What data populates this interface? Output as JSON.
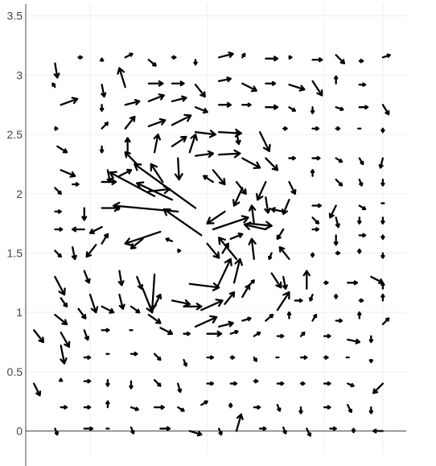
{
  "chart_data": {
    "type": "quiver",
    "title": "",
    "xlabel": "",
    "ylabel": "",
    "xlim": [
      -0.05,
      3.2
    ],
    "ylim": [
      -0.2,
      3.6
    ],
    "x_ticks_labeled": false,
    "y_ticks": [
      0,
      0.5,
      1,
      1.5,
      2,
      2.5,
      3,
      3.5
    ],
    "y_tick_labels": [
      "0",
      "0.5",
      "1",
      "1.5",
      "2",
      "2.5",
      "3",
      "3.5"
    ],
    "x_grid": [
      0.5,
      1.5,
      2.5,
      3.0
    ],
    "grid": true,
    "legend": "none",
    "arrow_color": "#000000",
    "grid_color": "#eeeeee",
    "axis_color": "#444444",
    "vectors": [
      [
        0.2,
        3.1,
        0.02,
        -0.12
      ],
      [
        0.4,
        3.15,
        0.03,
        0.0
      ],
      [
        0.6,
        3.12,
        0.0,
        0.02
      ],
      [
        0.8,
        3.15,
        0.06,
        0.03
      ],
      [
        1.0,
        3.13,
        0.06,
        -0.05
      ],
      [
        1.2,
        3.15,
        0.03,
        0.0
      ],
      [
        1.4,
        3.13,
        0.0,
        -0.04
      ],
      [
        1.6,
        3.15,
        0.12,
        0.03
      ],
      [
        1.8,
        3.15,
        0.02,
        0.03
      ],
      [
        2.0,
        3.14,
        0.1,
        0.0
      ],
      [
        2.2,
        3.15,
        0.02,
        0.0
      ],
      [
        2.4,
        3.13,
        0.08,
        0.0
      ],
      [
        2.6,
        3.17,
        0.07,
        -0.07
      ],
      [
        2.8,
        3.12,
        0.03,
        0.0
      ],
      [
        3.0,
        3.15,
        0.06,
        0.02
      ],
      [
        0.2,
        2.9,
        -0.02,
        0.03
      ],
      [
        0.6,
        2.92,
        0.02,
        -0.1
      ],
      [
        0.8,
        2.9,
        -0.05,
        0.16
      ],
      [
        1.0,
        2.93,
        0.12,
        0.0
      ],
      [
        1.2,
        2.93,
        0.1,
        0.0
      ],
      [
        1.4,
        2.92,
        0.08,
        -0.1
      ],
      [
        1.6,
        2.95,
        0.1,
        0.02
      ],
      [
        1.8,
        2.93,
        0.12,
        -0.06
      ],
      [
        2.0,
        2.93,
        0.08,
        0.0
      ],
      [
        2.2,
        2.92,
        0.13,
        -0.04
      ],
      [
        2.4,
        2.95,
        0.08,
        -0.12
      ],
      [
        2.6,
        2.93,
        0.0,
        0.06
      ],
      [
        2.8,
        2.92,
        0.05,
        0.0
      ],
      [
        0.25,
        2.75,
        0.14,
        0.05
      ],
      [
        0.6,
        2.75,
        0.0,
        -0.05
      ],
      [
        0.8,
        2.75,
        0.12,
        0.03
      ],
      [
        1.0,
        2.78,
        0.13,
        0.05
      ],
      [
        1.2,
        2.78,
        0.12,
        0.03
      ],
      [
        1.4,
        2.73,
        0.1,
        -0.04
      ],
      [
        1.6,
        2.75,
        0.1,
        0.0
      ],
      [
        1.8,
        2.75,
        0.07,
        0.0
      ],
      [
        2.0,
        2.73,
        0.1,
        0.0
      ],
      [
        2.2,
        2.73,
        0.05,
        -0.03
      ],
      [
        2.4,
        2.73,
        0.0,
        -0.05
      ],
      [
        2.6,
        2.73,
        0.06,
        -0.02
      ],
      [
        2.8,
        2.73,
        0.07,
        0.0
      ],
      [
        3.0,
        2.75,
        0.05,
        -0.08
      ],
      [
        0.2,
        2.55,
        0.02,
        0.0
      ],
      [
        0.6,
        2.55,
        0.05,
        0.05
      ],
      [
        0.8,
        2.55,
        0.08,
        0.1
      ],
      [
        1.0,
        2.57,
        0.14,
        0.05
      ],
      [
        1.2,
        2.58,
        0.16,
        0.08
      ],
      [
        1.4,
        2.52,
        0.17,
        -0.02
      ],
      [
        1.6,
        2.52,
        0.19,
        -0.01
      ],
      [
        1.75,
        2.52,
        0.02,
        -0.1
      ],
      [
        1.95,
        2.52,
        0.08,
        -0.16
      ],
      [
        2.15,
        2.55,
        0.03,
        0.0
      ],
      [
        2.4,
        2.55,
        0.05,
        0.0
      ],
      [
        2.6,
        2.55,
        0.03,
        0.0
      ],
      [
        2.8,
        2.55,
        0.0,
        0.0
      ],
      [
        3.0,
        2.55,
        0.0,
        -0.03
      ],
      [
        0.22,
        2.4,
        0.08,
        -0.05
      ],
      [
        0.6,
        2.4,
        0.0,
        -0.05
      ],
      [
        0.82,
        2.35,
        0.0,
        0.12
      ],
      [
        1.05,
        2.35,
        0.03,
        0.15
      ],
      [
        1.2,
        2.4,
        0.12,
        0.08
      ],
      [
        1.4,
        2.32,
        0.15,
        0.02
      ],
      [
        1.6,
        2.33,
        0.18,
        0.01
      ],
      [
        1.8,
        2.3,
        0.15,
        -0.08
      ],
      [
        2.0,
        2.3,
        0.1,
        -0.1
      ],
      [
        2.2,
        2.3,
        0.05,
        0.0
      ],
      [
        2.4,
        2.3,
        0.06,
        0.0
      ],
      [
        2.6,
        2.3,
        0.05,
        -0.03
      ],
      [
        2.8,
        2.3,
        0.03,
        -0.05
      ],
      [
        3.0,
        2.3,
        -0.02,
        -0.08
      ],
      [
        0.25,
        2.2,
        0.12,
        -0.05
      ],
      [
        0.65,
        2.2,
        0.02,
        -0.1
      ],
      [
        0.9,
        2.25,
        -0.1,
        0.1
      ],
      [
        1.12,
        2.1,
        -0.1,
        0.15
      ],
      [
        1.25,
        2.3,
        0.01,
        -0.18
      ],
      [
        1.35,
        2.35,
        0.05,
        0.15
      ],
      [
        1.55,
        2.2,
        0.1,
        -0.12
      ],
      [
        1.75,
        2.1,
        0.08,
        -0.1
      ],
      [
        2.0,
        2.1,
        -0.07,
        -0.15
      ],
      [
        2.2,
        2.1,
        0.05,
        -0.1
      ],
      [
        2.4,
        2.15,
        0.0,
        0.05
      ],
      [
        2.6,
        2.12,
        0.05,
        -0.05
      ],
      [
        2.8,
        2.12,
        0.02,
        -0.05
      ],
      [
        3.0,
        2.12,
        0.0,
        -0.05
      ],
      [
        0.2,
        2.05,
        0.05,
        -0.05
      ],
      [
        0.35,
        2.08,
        0.05,
        0.0
      ],
      [
        0.6,
        2.1,
        0.12,
        0.0
      ],
      [
        0.75,
        2.15,
        0.1,
        0.05
      ],
      [
        1.4,
        1.88,
        -0.52,
        0.37
      ],
      [
        1.0,
        2.02,
        0.18,
        0.02
      ],
      [
        1.2,
        1.95,
        -0.3,
        0.14
      ],
      [
        1.55,
        2.1,
        -0.08,
        0.05
      ],
      [
        1.8,
        2.05,
        -0.07,
        -0.15
      ],
      [
        2.0,
        1.97,
        0.02,
        -0.13
      ],
      [
        2.2,
        1.95,
        -0.05,
        -0.12
      ],
      [
        2.4,
        1.9,
        0.07,
        0.0
      ],
      [
        2.6,
        1.9,
        -0.05,
        -0.1
      ],
      [
        2.8,
        1.9,
        0.05,
        -0.03
      ],
      [
        3.0,
        1.92,
        0.0,
        0.0
      ],
      [
        0.2,
        1.85,
        0.05,
        0.0
      ],
      [
        0.45,
        1.88,
        0.0,
        -0.1
      ],
      [
        0.6,
        1.88,
        0.15,
        0.0
      ],
      [
        1.05,
        1.98,
        -0.38,
        0.2
      ],
      [
        1.25,
        1.85,
        -0.55,
        0.05
      ],
      [
        1.45,
        1.65,
        -0.32,
        0.22
      ],
      [
        1.65,
        1.85,
        -0.15,
        -0.1
      ],
      [
        1.9,
        1.75,
        -0.02,
        0.15
      ],
      [
        2.15,
        1.85,
        -0.1,
        0.02
      ],
      [
        2.4,
        1.8,
        0.05,
        -0.05
      ],
      [
        2.6,
        1.8,
        0.02,
        -0.08
      ],
      [
        2.8,
        1.8,
        0.0,
        -0.05
      ],
      [
        3.0,
        1.8,
        0.0,
        -0.05
      ],
      [
        0.2,
        1.7,
        0.06,
        0.0
      ],
      [
        0.45,
        1.7,
        -0.1,
        0.0
      ],
      [
        0.6,
        1.72,
        -0.1,
        -0.05
      ],
      [
        1.1,
        1.68,
        -0.3,
        -0.1
      ],
      [
        1.2,
        1.6,
        -0.05,
        0.02
      ],
      [
        1.55,
        1.7,
        0.3,
        0.1
      ],
      [
        1.7,
        1.62,
        0.1,
        0.04
      ],
      [
        1.85,
        1.75,
        0.2,
        -0.02
      ],
      [
        2.0,
        1.7,
        -0.18,
        0.04
      ],
      [
        2.15,
        1.7,
        -0.05,
        -0.08
      ],
      [
        2.4,
        1.7,
        0.05,
        0.0
      ],
      [
        2.6,
        1.65,
        0.0,
        -0.08
      ],
      [
        2.8,
        1.65,
        0.05,
        0.0
      ],
      [
        3.0,
        1.65,
        0.0,
        -0.03
      ],
      [
        0.2,
        1.52,
        0.05,
        -0.05
      ],
      [
        0.35,
        1.55,
        0.02,
        -0.1
      ],
      [
        0.55,
        1.57,
        -0.08,
        -0.1
      ],
      [
        0.6,
        1.58,
        0.05,
        0.08
      ],
      [
        0.95,
        1.62,
        -0.1,
        -0.08
      ],
      [
        1.25,
        1.52,
        0.02,
        0.0
      ],
      [
        1.5,
        1.58,
        0.1,
        -0.12
      ],
      [
        1.63,
        1.5,
        0.05,
        0.08
      ],
      [
        1.75,
        1.45,
        -0.15,
        0.18
      ],
      [
        1.9,
        1.45,
        -0.02,
        0.17
      ],
      [
        2.05,
        1.5,
        -0.02,
        -0.05
      ],
      [
        2.2,
        1.45,
        -0.08,
        0.1
      ],
      [
        2.4,
        1.5,
        0.0,
        -0.03
      ],
      [
        2.6,
        1.5,
        0.03,
        0.0
      ],
      [
        2.8,
        1.5,
        0.0,
        0.03
      ],
      [
        3.0,
        1.5,
        0.0,
        -0.04
      ],
      [
        0.2,
        1.3,
        0.08,
        -0.15
      ],
      [
        0.45,
        1.35,
        0.04,
        -0.1
      ],
      [
        0.75,
        1.35,
        0.02,
        -0.12
      ],
      [
        0.9,
        1.3,
        0.04,
        -0.1
      ],
      [
        1.05,
        1.32,
        -0.02,
        -0.3
      ],
      [
        1.35,
        1.24,
        0.25,
        -0.03
      ],
      [
        1.58,
        1.2,
        0.12,
        0.25
      ],
      [
        1.73,
        1.25,
        0.05,
        0.2
      ],
      [
        1.85,
        1.22,
        0.05,
        0.05
      ],
      [
        2.05,
        1.33,
        0.08,
        -0.12
      ],
      [
        2.15,
        1.3,
        0.02,
        -0.1
      ],
      [
        2.35,
        1.2,
        0.0,
        0.15
      ],
      [
        2.5,
        1.25,
        0.03,
        0.0
      ],
      [
        2.7,
        1.25,
        0.08,
        0.0
      ],
      [
        2.9,
        1.3,
        0.1,
        -0.05
      ],
      [
        3.0,
        1.2,
        0.0,
        0.05
      ],
      [
        0.25,
        1.12,
        0.05,
        -0.07
      ],
      [
        0.5,
        1.15,
        0.05,
        -0.15
      ],
      [
        0.75,
        1.15,
        0.03,
        -0.12
      ],
      [
        0.95,
        1.2,
        0.08,
        -0.2
      ],
      [
        1.05,
        1.05,
        0.05,
        0.1
      ],
      [
        1.2,
        1.1,
        0.15,
        -0.03
      ],
      [
        1.45,
        1.02,
        0.18,
        0.08
      ],
      [
        1.65,
        1.07,
        0.08,
        0.1
      ],
      [
        1.8,
        1.13,
        0.06,
        0.1
      ],
      [
        2.1,
        1.02,
        0.1,
        0.15
      ],
      [
        2.25,
        1.1,
        0.06,
        0.0
      ],
      [
        2.4,
        1.15,
        -0.02,
        -0.05
      ],
      [
        2.6,
        1.15,
        0.0,
        -0.03
      ],
      [
        2.8,
        1.1,
        0.03,
        0.0
      ],
      [
        3.0,
        1.1,
        0.0,
        0.05
      ],
      [
        0.2,
        0.98,
        0.1,
        -0.08
      ],
      [
        0.4,
        1.03,
        0.06,
        -0.08
      ],
      [
        0.6,
        1.05,
        0.1,
        -0.05
      ],
      [
        0.85,
        1.05,
        0.07,
        -0.05
      ],
      [
        1.0,
        0.98,
        0.1,
        -0.07
      ],
      [
        1.3,
        1.05,
        0.15,
        0.0
      ],
      [
        1.4,
        0.88,
        0.18,
        0.08
      ],
      [
        1.6,
        0.88,
        0.12,
        0.03
      ],
      [
        1.8,
        0.93,
        0.07,
        0.02
      ],
      [
        2.0,
        0.93,
        0.06,
        0.05
      ],
      [
        2.2,
        0.95,
        0.0,
        0.05
      ],
      [
        2.4,
        0.93,
        0.03,
        0.05
      ],
      [
        2.6,
        0.93,
        0.05,
        0.0
      ],
      [
        2.8,
        0.95,
        0.0,
        0.05
      ],
      [
        3.0,
        0.9,
        0.05,
        0.05
      ],
      [
        0.02,
        0.85,
        0.08,
        -0.1
      ],
      [
        0.25,
        0.83,
        0.07,
        -0.12
      ],
      [
        0.45,
        0.85,
        0.03,
        -0.08
      ],
      [
        0.6,
        0.85,
        0.06,
        0.0
      ],
      [
        0.85,
        0.85,
        0.0,
        0.0
      ],
      [
        1.1,
        0.87,
        0.1,
        -0.05
      ],
      [
        1.3,
        0.82,
        0.05,
        0.0
      ],
      [
        1.5,
        0.82,
        0.12,
        0.0
      ],
      [
        1.7,
        0.82,
        0.06,
        0.02
      ],
      [
        1.9,
        0.8,
        0.05,
        0.03
      ],
      [
        2.1,
        0.8,
        0.05,
        0.0
      ],
      [
        2.3,
        0.8,
        0.03,
        0.03
      ],
      [
        2.5,
        0.8,
        0.05,
        0.0
      ],
      [
        2.7,
        0.77,
        0.1,
        -0.02
      ],
      [
        2.9,
        0.8,
        0.0,
        -0.05
      ],
      [
        0.25,
        0.72,
        0.03,
        -0.15
      ],
      [
        0.45,
        0.62,
        0.05,
        0.0
      ],
      [
        0.65,
        0.65,
        0.0,
        0.0
      ],
      [
        0.85,
        0.65,
        0.05,
        0.0
      ],
      [
        1.05,
        0.65,
        0.05,
        -0.05
      ],
      [
        1.3,
        0.6,
        0.02,
        -0.05
      ],
      [
        1.5,
        0.62,
        0.05,
        0.0
      ],
      [
        1.7,
        0.62,
        0.03,
        0.0
      ],
      [
        1.9,
        0.62,
        0.02,
        -0.03
      ],
      [
        2.1,
        0.62,
        0.0,
        0.0
      ],
      [
        2.3,
        0.62,
        0.05,
        0.0
      ],
      [
        2.5,
        0.62,
        0.03,
        0.0
      ],
      [
        2.7,
        0.62,
        0.0,
        0.0
      ],
      [
        2.9,
        0.6,
        0.0,
        -0.02
      ],
      [
        0.02,
        0.4,
        0.05,
        -0.1
      ],
      [
        0.25,
        0.42,
        0.0,
        0.02
      ],
      [
        0.45,
        0.42,
        0.05,
        0.0
      ],
      [
        0.65,
        0.43,
        0.0,
        -0.05
      ],
      [
        0.85,
        0.42,
        0.0,
        -0.06
      ],
      [
        1.05,
        0.43,
        0.05,
        -0.05
      ],
      [
        1.25,
        0.4,
        0.02,
        -0.07
      ],
      [
        1.5,
        0.4,
        0.05,
        0.0
      ],
      [
        1.7,
        0.4,
        0.05,
        0.0
      ],
      [
        1.9,
        0.42,
        0.03,
        0.0
      ],
      [
        2.1,
        0.4,
        0.05,
        0.0
      ],
      [
        2.3,
        0.4,
        0.03,
        0.0
      ],
      [
        2.5,
        0.4,
        0.05,
        0.0
      ],
      [
        2.7,
        0.4,
        0.05,
        -0.02
      ],
      [
        3.0,
        0.4,
        -0.08,
        -0.08
      ],
      [
        0.25,
        0.2,
        0.05,
        0.0
      ],
      [
        0.45,
        0.2,
        0.05,
        0.0
      ],
      [
        0.65,
        0.2,
        0.0,
        0.05
      ],
      [
        0.85,
        0.2,
        0.06,
        -0.02
      ],
      [
        1.05,
        0.2,
        0.08,
        0.0
      ],
      [
        1.25,
        0.2,
        0.05,
        -0.03
      ],
      [
        1.45,
        0.22,
        0.05,
        0.03
      ],
      [
        1.7,
        0.2,
        0.0,
        0.03
      ],
      [
        1.9,
        0.2,
        0.05,
        0.0
      ],
      [
        2.1,
        0.22,
        0.02,
        -0.05
      ],
      [
        2.3,
        0.2,
        0.0,
        -0.05
      ],
      [
        2.5,
        0.2,
        0.05,
        0.0
      ],
      [
        2.7,
        0.22,
        0.03,
        -0.06
      ],
      [
        2.9,
        0.2,
        0.0,
        -0.05
      ],
      [
        0.2,
        0.02,
        0.02,
        -0.05
      ],
      [
        0.45,
        0.02,
        0.07,
        0.0
      ],
      [
        0.65,
        0.02,
        0.0,
        0.0
      ],
      [
        0.85,
        0.03,
        0.02,
        -0.05
      ],
      [
        1.1,
        0.02,
        0.08,
        0.0
      ],
      [
        1.35,
        0.0,
        0.1,
        -0.03
      ],
      [
        1.6,
        0.02,
        0.02,
        -0.05
      ],
      [
        1.75,
        0.0,
        0.04,
        0.14
      ],
      [
        1.95,
        0.02,
        0.05,
        0.0
      ],
      [
        2.15,
        0.03,
        0.02,
        -0.05
      ],
      [
        2.35,
        0.02,
        0.03,
        -0.06
      ],
      [
        2.55,
        0.02,
        0.05,
        0.0
      ],
      [
        2.75,
        0.02,
        0.0,
        -0.03
      ],
      [
        3.0,
        0.0,
        -0.08,
        0.0
      ]
    ]
  }
}
